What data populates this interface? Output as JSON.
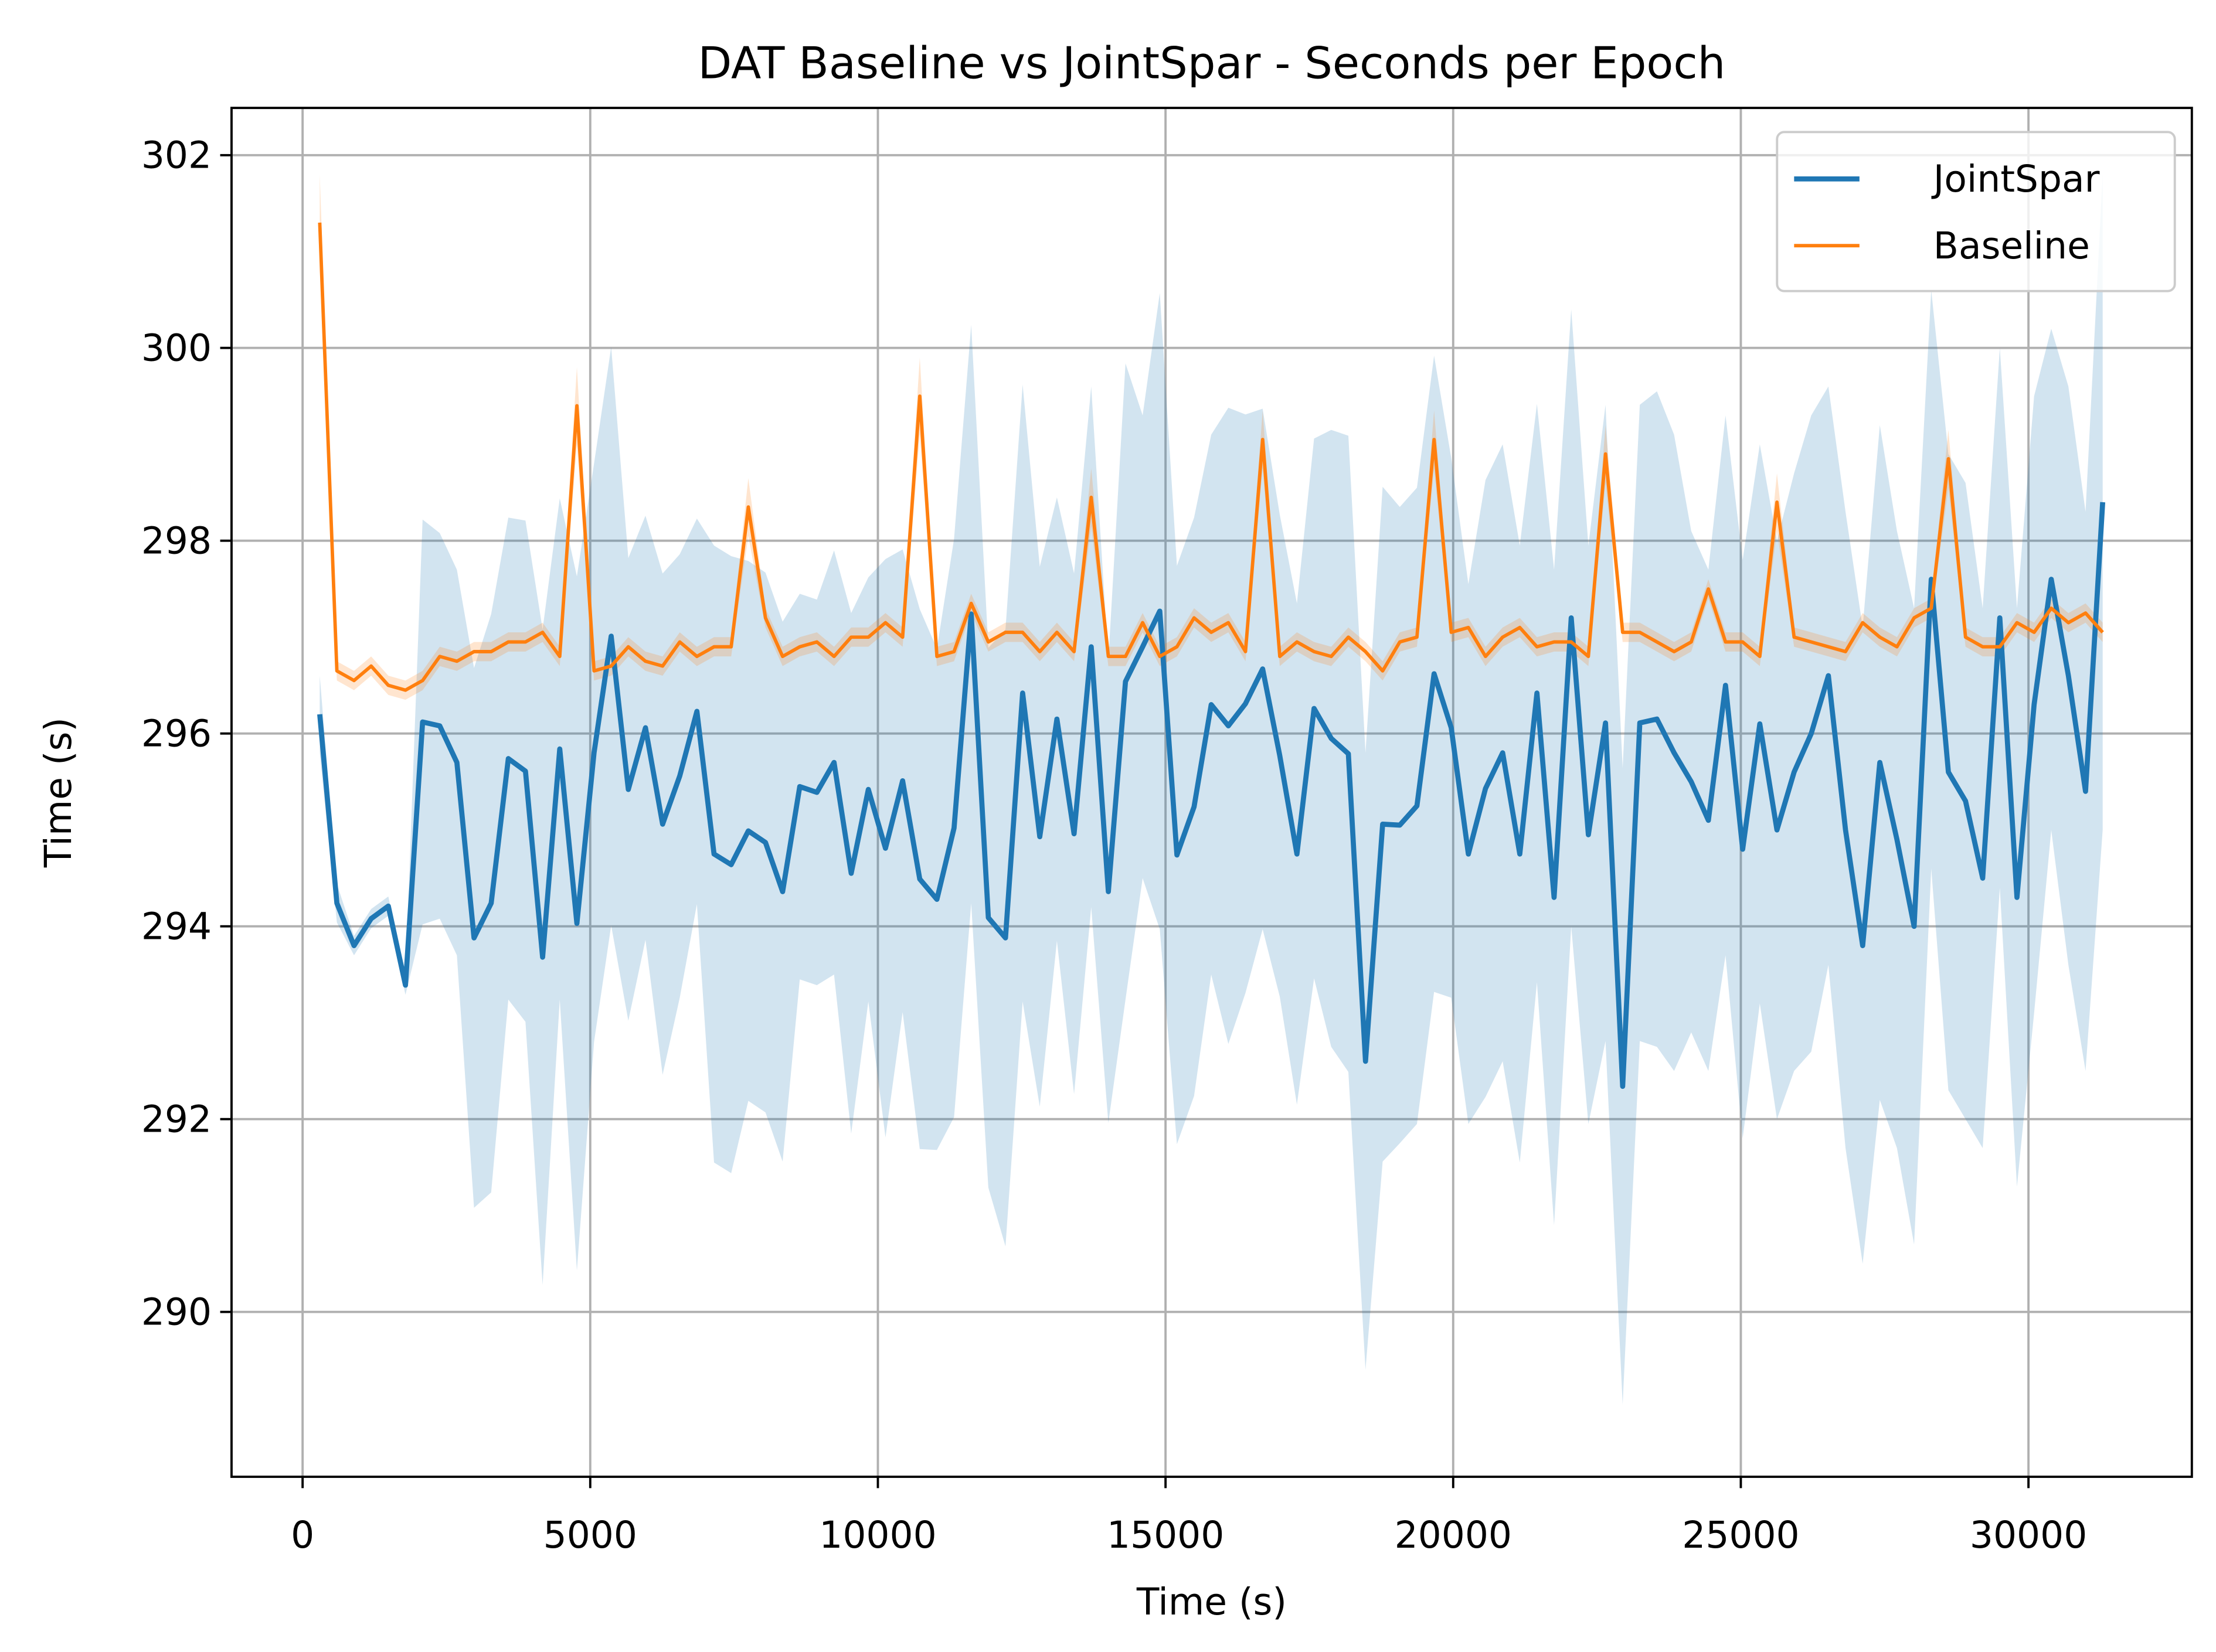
{
  "chart_data": {
    "type": "line",
    "title": "DAT Baseline vs JointSpar - Seconds per Epoch",
    "xlabel": "Time (s)",
    "ylabel": "Time (s)",
    "x": [
      298,
      596,
      894,
      1192,
      1490,
      1788,
      2086,
      2384,
      2682,
      2980,
      3278,
      3576,
      3874,
      4172,
      4470,
      4768,
      5066,
      5364,
      5662,
      5960,
      6258,
      6556,
      6854,
      7152,
      7450,
      7748,
      8046,
      8344,
      8642,
      8940,
      9238,
      9536,
      9834,
      10132,
      10430,
      10728,
      11026,
      11324,
      11622,
      11920,
      12218,
      12516,
      12814,
      13112,
      13410,
      13708,
      14006,
      14304,
      14602,
      14900,
      15198,
      15496,
      15794,
      16092,
      16390,
      16688,
      16986,
      17284,
      17582,
      17880,
      18178,
      18476,
      18774,
      19072,
      19370,
      19668,
      19966,
      20264,
      20562,
      20860,
      21158,
      21456,
      21754,
      22052,
      22350,
      22648,
      22946,
      23244,
      23542,
      23840,
      24138,
      24436,
      24734,
      25032,
      25330,
      25628,
      25926,
      26224,
      26522,
      26820,
      27118,
      27416,
      27714,
      28012,
      28310,
      28608,
      28906,
      29204,
      29502,
      29800,
      30098,
      30396,
      30694,
      30992,
      31290
    ],
    "series": [
      {
        "name": "JointSpar",
        "color": "#1f77b4",
        "values": [
          296.2,
          294.24,
          293.8,
          294.08,
          294.21,
          293.39,
          296.12,
          296.08,
          295.7,
          293.88,
          294.24,
          295.74,
          295.61,
          293.68,
          295.84,
          294.03,
          295.8,
          297.01,
          295.42,
          296.06,
          295.06,
          295.56,
          296.23,
          294.75,
          294.64,
          294.99,
          294.87,
          294.36,
          295.45,
          295.39,
          295.7,
          294.55,
          295.42,
          294.81,
          295.51,
          294.49,
          294.28,
          295.02,
          297.24,
          294.09,
          293.88,
          296.42,
          294.93,
          296.15,
          294.96,
          296.9,
          294.36,
          296.54,
          296.9,
          297.27,
          294.74,
          295.24,
          296.3,
          296.08,
          296.31,
          296.67,
          295.77,
          294.75,
          296.26,
          295.95,
          295.79,
          292.6,
          295.06,
          295.05,
          295.25,
          296.62,
          296.06,
          294.75,
          295.43,
          295.8,
          294.75,
          296.42,
          294.3,
          297.2,
          294.95,
          296.11,
          292.34,
          296.11,
          296.15,
          295.8,
          295.5,
          295.1,
          296.5,
          294.8,
          296.1,
          295.0,
          295.6,
          296.0,
          296.6,
          295.0,
          293.8,
          295.7,
          294.9,
          294.0,
          297.6,
          295.6,
          295.3,
          294.5,
          297.2,
          294.3,
          296.3,
          297.6,
          296.6,
          295.4,
          298.4
        ],
        "std": [
          0.4,
          0.2,
          0.1,
          0.1,
          0.1,
          0.1,
          2.1,
          2.0,
          2.0,
          2.8,
          3.0,
          2.5,
          2.6,
          3.4,
          2.6,
          3.6,
          3.0,
          3.0,
          2.4,
          2.2,
          2.6,
          2.3,
          2.0,
          3.2,
          3.2,
          2.8,
          2.8,
          2.8,
          2.0,
          2.0,
          2.2,
          2.7,
          2.2,
          3.0,
          2.4,
          2.8,
          2.6,
          3.0,
          3.0,
          2.8,
          3.2,
          3.2,
          2.8,
          2.3,
          2.7,
          2.7,
          2.4,
          3.3,
          2.4,
          3.3,
          3.0,
          3.0,
          2.8,
          3.3,
          3.0,
          2.7,
          2.5,
          2.6,
          2.8,
          3.2,
          3.3,
          3.2,
          3.5,
          3.3,
          3.3,
          3.3,
          2.8,
          2.8,
          3.2,
          3.2,
          3.2,
          3.0,
          3.4,
          3.2,
          3.0,
          3.3,
          3.3,
          3.3,
          3.4,
          3.3,
          2.6,
          2.6,
          2.8,
          3.0,
          2.9,
          3.0,
          3.1,
          3.3,
          3.0,
          3.3,
          3.3,
          3.5,
          3.2,
          3.3,
          3.0,
          3.3,
          3.3,
          2.8,
          2.8,
          3.0,
          3.2,
          2.6,
          3.0,
          2.9,
          3.4
        ]
      },
      {
        "name": "Baseline",
        "color": "#ff7f0e",
        "values": [
          301.3,
          296.65,
          296.55,
          296.7,
          296.5,
          296.45,
          296.55,
          296.8,
          296.75,
          296.85,
          296.85,
          296.95,
          296.95,
          297.05,
          296.8,
          299.4,
          296.65,
          296.7,
          296.9,
          296.75,
          296.7,
          296.95,
          296.8,
          296.9,
          296.9,
          298.35,
          297.2,
          296.8,
          296.9,
          296.95,
          296.8,
          297.0,
          297.0,
          297.15,
          297.0,
          299.5,
          296.8,
          296.85,
          297.35,
          296.95,
          297.05,
          297.05,
          296.85,
          297.05,
          296.85,
          298.45,
          296.8,
          296.8,
          297.15,
          296.8,
          296.9,
          297.2,
          297.05,
          297.15,
          296.85,
          299.05,
          296.8,
          296.95,
          296.85,
          296.8,
          297.0,
          296.85,
          296.65,
          296.95,
          297.0,
          299.05,
          297.05,
          297.1,
          296.8,
          297.0,
          297.1,
          296.9,
          296.95,
          296.95,
          296.8,
          298.9,
          297.05,
          297.05,
          296.95,
          296.85,
          296.95,
          297.5,
          296.95,
          296.95,
          296.8,
          298.4,
          297.0,
          296.95,
          296.9,
          296.85,
          297.15,
          297.0,
          296.9,
          297.2,
          297.3,
          298.85,
          297.0,
          296.9,
          296.9,
          297.15,
          297.05,
          297.3,
          297.15,
          297.25,
          297.05
        ],
        "std": [
          0.5,
          0.1,
          0.1,
          0.1,
          0.1,
          0.1,
          0.1,
          0.1,
          0.1,
          0.1,
          0.1,
          0.1,
          0.1,
          0.1,
          0.1,
          0.4,
          0.1,
          0.1,
          0.1,
          0.1,
          0.1,
          0.1,
          0.1,
          0.1,
          0.1,
          0.3,
          0.1,
          0.1,
          0.1,
          0.1,
          0.1,
          0.1,
          0.1,
          0.1,
          0.1,
          0.4,
          0.1,
          0.1,
          0.1,
          0.1,
          0.1,
          0.1,
          0.1,
          0.1,
          0.1,
          0.3,
          0.1,
          0.1,
          0.1,
          0.1,
          0.1,
          0.1,
          0.1,
          0.1,
          0.1,
          0.3,
          0.1,
          0.1,
          0.1,
          0.1,
          0.1,
          0.1,
          0.1,
          0.1,
          0.1,
          0.3,
          0.1,
          0.1,
          0.1,
          0.1,
          0.1,
          0.1,
          0.1,
          0.1,
          0.1,
          0.3,
          0.1,
          0.1,
          0.1,
          0.1,
          0.1,
          0.1,
          0.1,
          0.1,
          0.1,
          0.3,
          0.1,
          0.1,
          0.1,
          0.1,
          0.1,
          0.1,
          0.1,
          0.1,
          0.1,
          0.3,
          0.1,
          0.1,
          0.1,
          0.1,
          0.1,
          0.1,
          0.1,
          0.1,
          0.1
        ]
      }
    ],
    "xlim": [
      -1235,
      32840
    ],
    "ylim": [
      288.29,
      302.49
    ],
    "xticks": [
      0,
      5000,
      10000,
      15000,
      20000,
      25000,
      30000
    ],
    "yticks": [
      290,
      292,
      294,
      296,
      298,
      300,
      302
    ],
    "grid": true,
    "legend": "upper right"
  }
}
